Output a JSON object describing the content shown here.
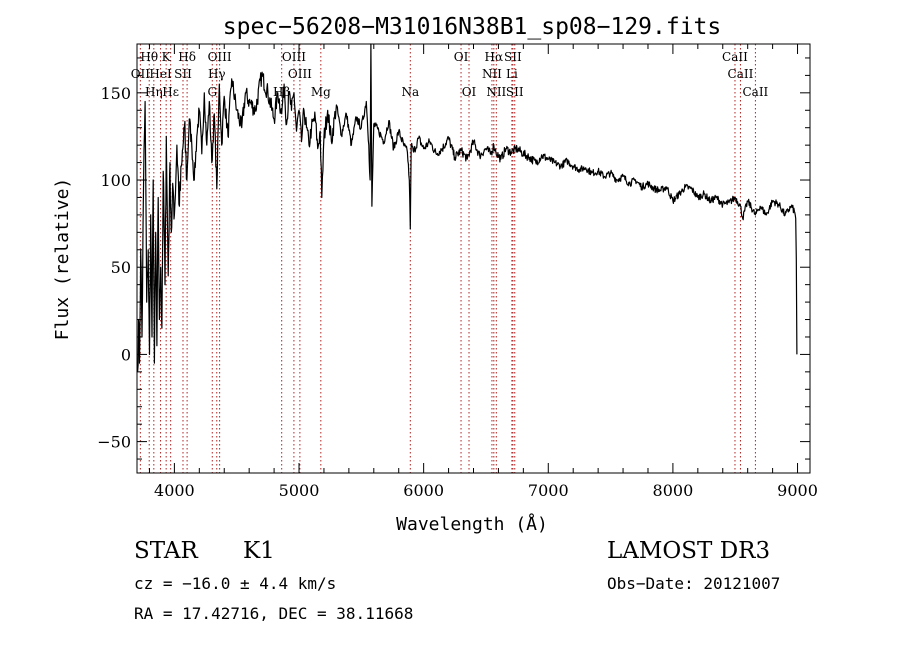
{
  "chart_data": {
    "type": "line",
    "title": "spec−56208−M31016N38B1_sp08−129.fits",
    "xlabel": "Wavelength (Å)",
    "ylabel": "Flux (relative)",
    "xlim": [
      3700,
      9100
    ],
    "ylim": [
      -68,
      178
    ],
    "x_ticks": [
      4000,
      5000,
      6000,
      7000,
      8000,
      9000
    ],
    "x_tick_labels": [
      "4000",
      "5000",
      "6000",
      "7000",
      "8000",
      "9000"
    ],
    "y_ticks": [
      -50,
      0,
      50,
      100,
      150
    ],
    "y_tick_labels": [
      "−50",
      "0",
      "50",
      "100",
      "150"
    ],
    "x_minor_step": 200,
    "y_minor_step": 10,
    "grid": false,
    "series_color": "#000000",
    "line_color": "#b22222",
    "spectrum": {
      "name": "flux",
      "x": [
        3705,
        3712,
        3720,
        3730,
        3740,
        3752,
        3765,
        3778,
        3790,
        3800,
        3810,
        3820,
        3830,
        3840,
        3850,
        3860,
        3870,
        3880,
        3890,
        3900,
        3910,
        3925,
        3935,
        3950,
        3965,
        3975,
        3990,
        4000,
        4020,
        4040,
        4060,
        4080,
        4100,
        4120,
        4140,
        4160,
        4180,
        4200,
        4220,
        4240,
        4260,
        4280,
        4300,
        4320,
        4340,
        4360,
        4380,
        4400,
        4430,
        4460,
        4500,
        4540,
        4570,
        4600,
        4650,
        4700,
        4750,
        4800,
        4830,
        4861,
        4880,
        4900,
        4920,
        4940,
        4960,
        4980,
        5000,
        5020,
        5040,
        5060,
        5080,
        5100,
        5130,
        5150,
        5170,
        5183,
        5200,
        5230,
        5260,
        5300,
        5340,
        5380,
        5420,
        5460,
        5500,
        5540,
        5560,
        5570,
        5577,
        5585,
        5600,
        5640,
        5680,
        5720,
        5760,
        5800,
        5840,
        5870,
        5885,
        5893,
        5900,
        5920,
        5960,
        6000,
        6050,
        6100,
        6150,
        6200,
        6250,
        6300,
        6350,
        6400,
        6450,
        6500,
        6540,
        6563,
        6580,
        6620,
        6660,
        6700,
        6750,
        6800,
        6850,
        6900,
        6950,
        7000,
        7050,
        7100,
        7150,
        7200,
        7250,
        7300,
        7350,
        7400,
        7450,
        7500,
        7550,
        7600,
        7650,
        7700,
        7750,
        7800,
        7850,
        7900,
        7950,
        8000,
        8050,
        8100,
        8150,
        8200,
        8250,
        8300,
        8350,
        8400,
        8450,
        8500,
        8542,
        8560,
        8600,
        8662,
        8700,
        8750,
        8800,
        8850,
        8900,
        8950,
        8975,
        8985,
        8990,
        8995
      ],
      "y": [
        -10,
        20,
        -5,
        60,
        10,
        95,
        145,
        30,
        60,
        0,
        80,
        10,
        100,
        -5,
        70,
        5,
        90,
        20,
        50,
        15,
        105,
        40,
        125,
        45,
        110,
        70,
        95,
        80,
        120,
        85,
        110,
        130,
        100,
        135,
        120,
        100,
        125,
        140,
        115,
        150,
        120,
        145,
        110,
        138,
        95,
        155,
        120,
        148,
        125,
        158,
        140,
        130,
        150,
        145,
        140,
        160,
        150,
        135,
        150,
        138,
        155,
        132,
        150,
        140,
        150,
        128,
        140,
        122,
        140,
        130,
        120,
        130,
        136,
        118,
        128,
        90,
        124,
        140,
        122,
        143,
        126,
        138,
        120,
        136,
        130,
        145,
        120,
        100,
        178,
        85,
        132,
        128,
        122,
        134,
        118,
        128,
        120,
        116,
        100,
        72,
        120,
        116,
        124,
        118,
        122,
        115,
        118,
        124,
        113,
        117,
        112,
        122,
        114,
        118,
        115,
        120,
        116,
        112,
        118,
        116,
        118,
        115,
        113,
        110,
        114,
        112,
        110,
        108,
        111,
        108,
        106,
        107,
        104,
        105,
        102,
        104,
        100,
        102,
        98,
        100,
        96,
        98,
        95,
        94,
        96,
        88,
        92,
        96,
        95,
        90,
        92,
        88,
        90,
        86,
        87,
        90,
        85,
        78,
        88,
        80,
        85,
        80,
        88,
        86,
        80,
        85,
        82,
        78,
        55,
        0
      ]
    },
    "lines": [
      {
        "label": "Hθ",
        "x": 3798,
        "row": 0
      },
      {
        "label": "K",
        "x": 3934,
        "row": 0
      },
      {
        "label": "Hδ",
        "x": 4102,
        "row": 0
      },
      {
        "label": "OIII",
        "x": 4363,
        "row": 0
      },
      {
        "label": "OIII",
        "x": 4959,
        "row": 0
      },
      {
        "label": "OI",
        "x": 6300,
        "row": 0
      },
      {
        "label": "Hα",
        "x": 6563,
        "row": 0
      },
      {
        "label": "SII",
        "x": 6716,
        "row": 0
      },
      {
        "label": "CaII",
        "x": 8498,
        "row": 0
      },
      {
        "label": "OII",
        "x": 3727,
        "row": 1
      },
      {
        "label": "HeI",
        "x": 3889,
        "row": 1
      },
      {
        "label": "SII",
        "x": 4069,
        "row": 1
      },
      {
        "label": "Hγ",
        "x": 4340,
        "row": 1
      },
      {
        "label": "OIII",
        "x": 5007,
        "row": 1
      },
      {
        "label": "NII",
        "x": 6548,
        "row": 1
      },
      {
        "label": "Li",
        "x": 6708,
        "row": 1
      },
      {
        "label": "CaII",
        "x": 8542,
        "row": 1
      },
      {
        "label": "Hη",
        "x": 3835,
        "row": 2
      },
      {
        "label": "Hε",
        "x": 3970,
        "row": 2
      },
      {
        "label": "G",
        "x": 4304,
        "row": 2
      },
      {
        "label": "Hβ",
        "x": 4861,
        "row": 2
      },
      {
        "label": "Mg",
        "x": 5175,
        "row": 2
      },
      {
        "label": "Na",
        "x": 5893,
        "row": 2
      },
      {
        "label": "OI",
        "x": 6364,
        "row": 2
      },
      {
        "label": "NII",
        "x": 6583,
        "row": 2
      },
      {
        "label": "SII",
        "x": 6731,
        "row": 2
      },
      {
        "label": "CaII",
        "x": 8662,
        "row": 2
      }
    ]
  },
  "info": {
    "class_label": "STAR",
    "subclass": "K1",
    "survey": "LAMOST DR3",
    "cz": "cz = −16.0 ± 4.4 km/s",
    "obs_date": "Obs−Date: 20121007",
    "coords": "RA =  17.42716, DEC =  38.11668"
  }
}
